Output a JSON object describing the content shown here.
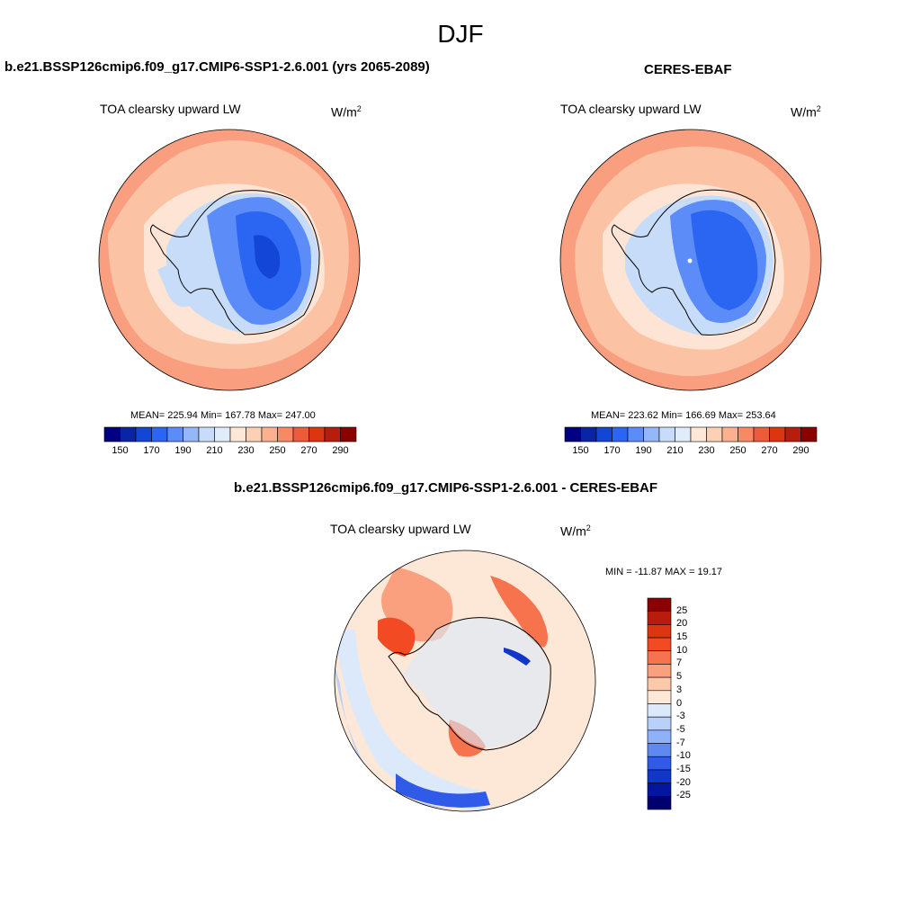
{
  "title": "DJF",
  "colors": {
    "blue_scale": [
      "#000080",
      "#0a24a6",
      "#1345d6",
      "#2a66f2",
      "#5b8cf7",
      "#95b6f7",
      "#c7dcf8",
      "#e0ecfa"
    ],
    "red_scale": [
      "#fde8d8",
      "#fcd0b4",
      "#fbb08e",
      "#f68a65",
      "#ee5a3a",
      "#dc3510",
      "#b81c0c",
      "#8c0000"
    ],
    "diff_colors": [
      "#8c0000",
      "#b81c0c",
      "#dc3510",
      "#f24a23",
      "#f6734d",
      "#fba07e",
      "#fdc9ab",
      "#fde8d8",
      "#dbe9fa",
      "#b9d1f8",
      "#8fb2f6",
      "#5e8af0",
      "#2f5be8",
      "#1136c8",
      "#04169f",
      "#00006e"
    ]
  },
  "panels": [
    {
      "title": "b.e21.BSSP126cmip6.f09_g17.CMIP6-SSP1-2.6.001 (yrs 2065-2089)",
      "variable": "TOA clearsky upward LW",
      "unit_base": "W/m",
      "unit_exp": "2",
      "stats": "MEAN= 225.94  Min= 167.78  Max= 247.00"
    },
    {
      "title": "CERES-EBAF",
      "variable": "TOA clearsky upward LW",
      "unit_base": "W/m",
      "unit_exp": "2",
      "stats": "MEAN= 223.62  Min= 166.69  Max= 253.64"
    },
    {
      "title": "b.e21.BSSP126cmip6.f09_g17.CMIP6-SSP1-2.6.001 - CERES-EBAF",
      "variable": "TOA clearsky upward LW",
      "unit_base": "W/m",
      "unit_exp": "2",
      "stats": "MIN = -11.87 MAX =  19.17"
    }
  ],
  "chart_data": [
    {
      "type": "heatmap",
      "projection": "south polar stereographic",
      "colorbar_ticks": [
        "150",
        "170",
        "190",
        "210",
        "230",
        "250",
        "270",
        "290"
      ],
      "colorbar_levels": [
        140,
        150,
        160,
        170,
        180,
        190,
        200,
        210,
        220,
        230,
        240,
        250,
        260,
        270,
        280,
        290,
        300
      ],
      "mean": 225.94,
      "min": 167.78,
      "max": 247.0
    },
    {
      "type": "heatmap",
      "projection": "south polar stereographic",
      "colorbar_ticks": [
        "150",
        "170",
        "190",
        "210",
        "230",
        "250",
        "270",
        "290"
      ],
      "colorbar_levels": [
        140,
        150,
        160,
        170,
        180,
        190,
        200,
        210,
        220,
        230,
        240,
        250,
        260,
        270,
        280,
        290,
        300
      ],
      "mean": 223.62,
      "min": 166.69,
      "max": 253.64
    },
    {
      "type": "heatmap",
      "projection": "south polar stereographic",
      "colorbar_ticks": [
        "25",
        "20",
        "15",
        "10",
        "7",
        "5",
        "3",
        "0",
        "-3",
        "-5",
        "-7",
        "-10",
        "-15",
        "-20",
        "-25"
      ],
      "min": -11.87,
      "max": 19.17
    }
  ]
}
